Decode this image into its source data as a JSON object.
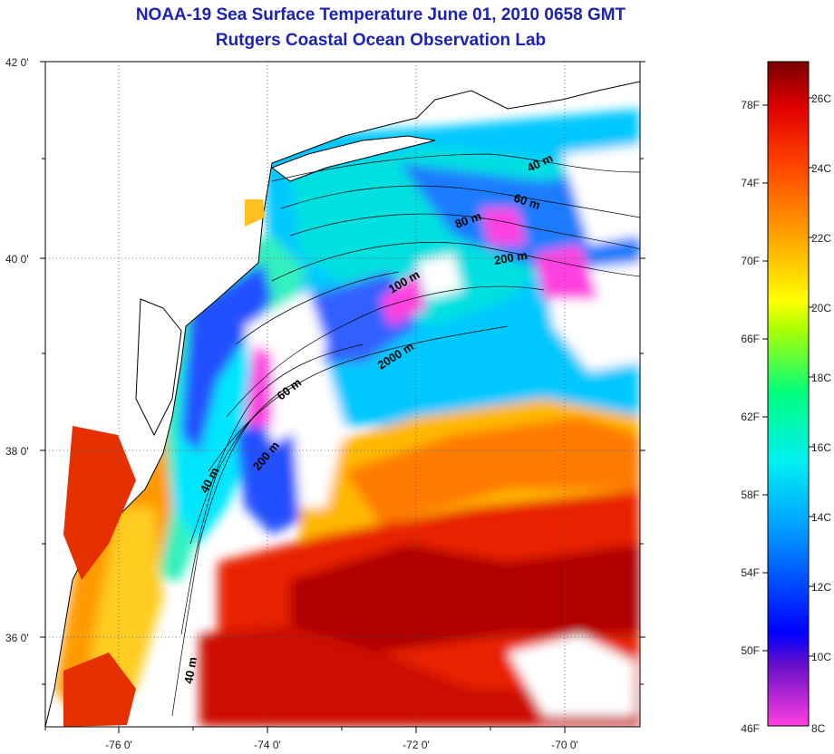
{
  "title": {
    "line1": "NOAA-19 Sea Surface Temperature June 01, 2010 0658 GMT",
    "line2": "Rutgers Coastal Ocean Observation Lab"
  },
  "map": {
    "lat_labels": [
      "42 0'",
      "40 0'",
      "38 0'",
      "36 0'"
    ],
    "lon_labels": [
      "-76 0'",
      "-74 0'",
      "-72 0'",
      "-70 0'"
    ],
    "depth_contours": [
      "40 m",
      "60 m",
      "80 m",
      "200 m",
      "100 m",
      "2000 m",
      "60 m",
      "200 m",
      "40 m",
      "40 m"
    ]
  },
  "colorbar": {
    "fahrenheit_labels": [
      "78F",
      "74F",
      "70F",
      "66F",
      "62F",
      "58F",
      "54F",
      "50F",
      "46F"
    ],
    "celsius_labels": [
      "26C",
      "24C",
      "22C",
      "20C",
      "18C",
      "16C",
      "14C",
      "12C",
      "10C",
      "8C"
    ],
    "colors": [
      "#ff40e0",
      "#6a10c8",
      "#0000ff",
      "#00a0ff",
      "#00f0f0",
      "#00ff80",
      "#b0ff00",
      "#ffff00",
      "#ffa000",
      "#ff4000",
      "#e00000",
      "#7a0000"
    ]
  }
}
